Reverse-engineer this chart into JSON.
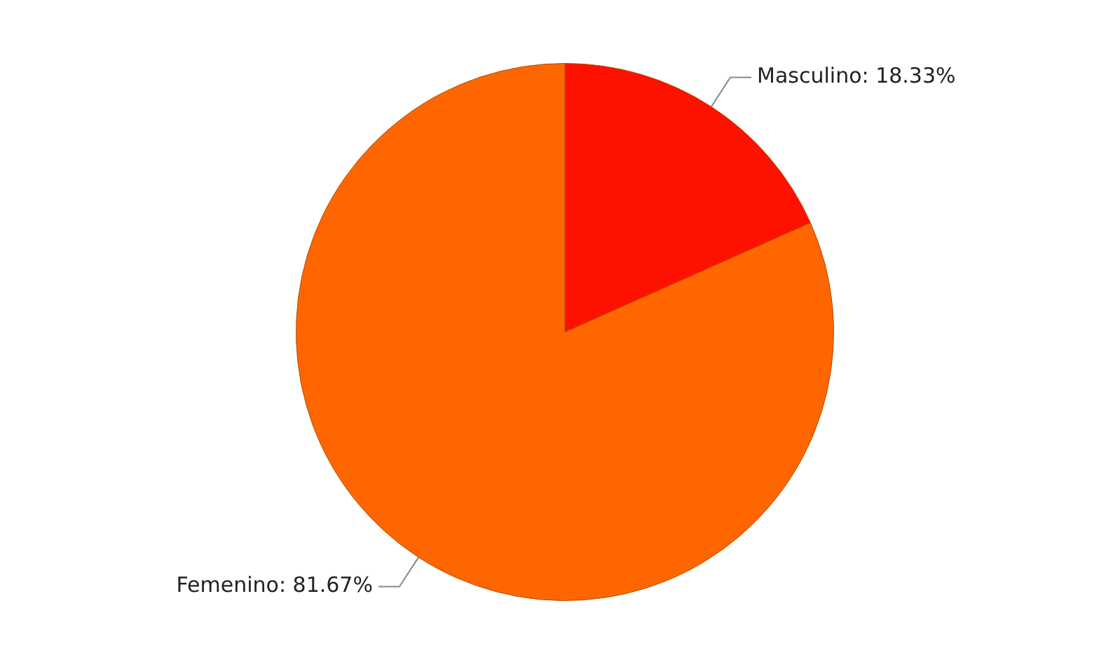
{
  "chart_data": {
    "type": "pie",
    "categories": [
      "Masculino",
      "Femenino"
    ],
    "values": [
      18.33,
      81.67
    ],
    "colors": [
      "#ff1100",
      "#ff6600"
    ],
    "value_labels": [
      ": 18.33%",
      ": 81.67%"
    ],
    "legend": false
  }
}
